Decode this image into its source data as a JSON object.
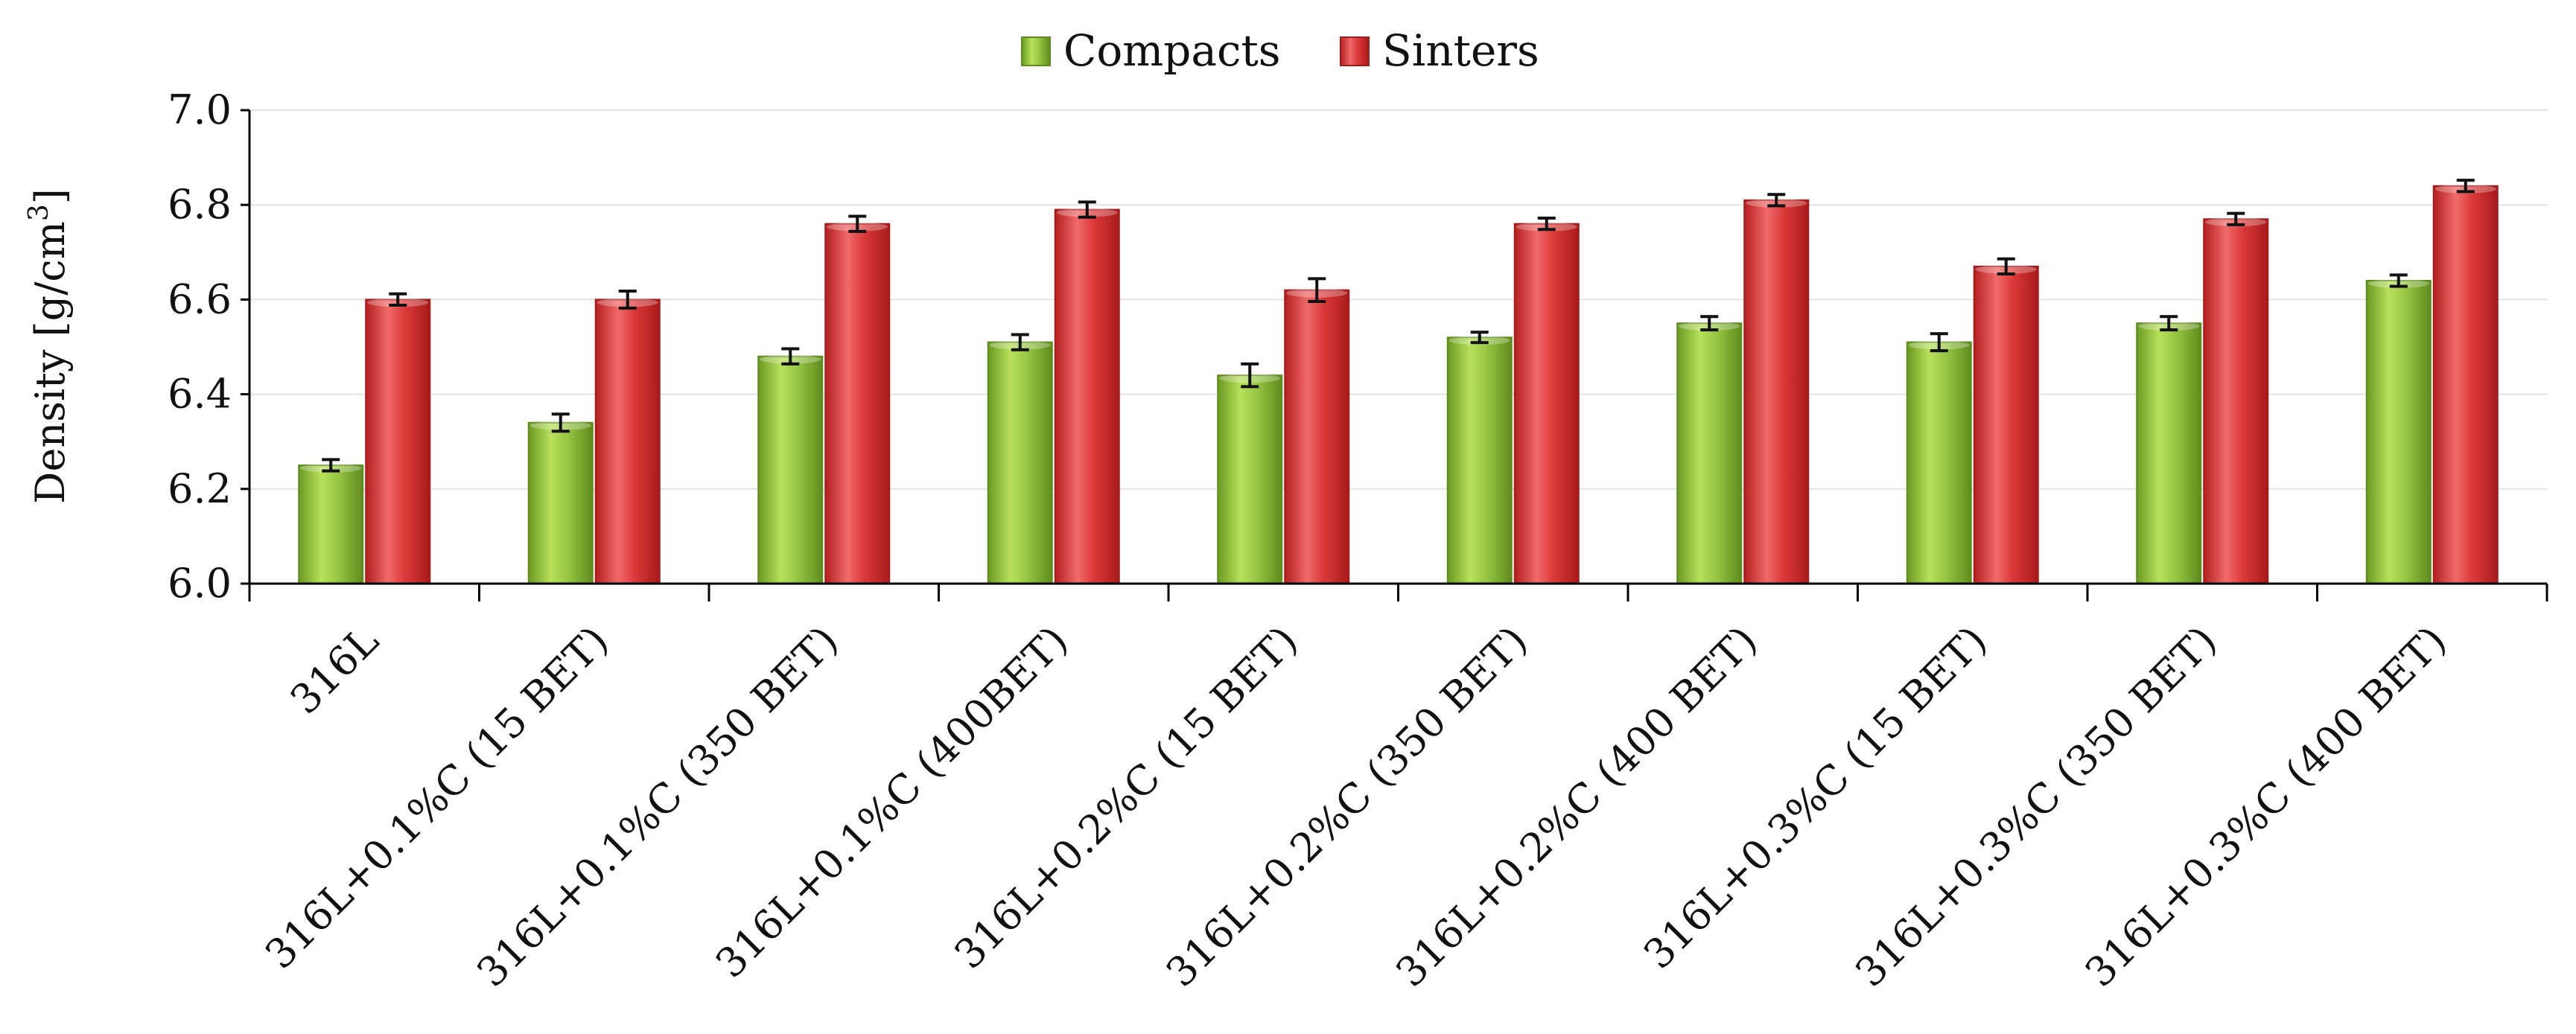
{
  "chart_data": {
    "type": "bar",
    "title": "",
    "xlabel": "",
    "ylabel": {
      "text": "Density [g/cm",
      "sup": "3",
      "suffix": "]"
    },
    "ylim": [
      6.0,
      7.0
    ],
    "yticks": [
      "6.0",
      "6.2",
      "6.4",
      "6.6",
      "6.8",
      "7.0"
    ],
    "grid": true,
    "legend": "top-center",
    "categories": [
      "316L",
      "316L+0.1%C (15 BET)",
      "316L+0.1%C (350 BET)",
      "316L+0.1%C (400BET)",
      "316L+0.2%C (15 BET)",
      "316L+0.2%C (350 BET)",
      "316L+0.2%C (400 BET)",
      "316L+0.3%C (15 BET)",
      "316L+0.3%C (350 BET)",
      "316L+0.3%C (400 BET)"
    ],
    "series": [
      {
        "name": "Compacts",
        "color": "#8dbb3c",
        "values": [
          6.25,
          6.34,
          6.48,
          6.51,
          6.44,
          6.52,
          6.55,
          6.51,
          6.55,
          6.64
        ],
        "errors": [
          0.012,
          0.018,
          0.016,
          0.016,
          0.024,
          0.011,
          0.014,
          0.018,
          0.014,
          0.012
        ]
      },
      {
        "name": "Sinters",
        "color": "#d73434",
        "values": [
          6.6,
          6.6,
          6.76,
          6.79,
          6.62,
          6.76,
          6.81,
          6.67,
          6.77,
          6.84
        ],
        "errors": [
          0.012,
          0.018,
          0.016,
          0.016,
          0.024,
          0.012,
          0.012,
          0.016,
          0.012,
          0.012
        ]
      }
    ]
  }
}
